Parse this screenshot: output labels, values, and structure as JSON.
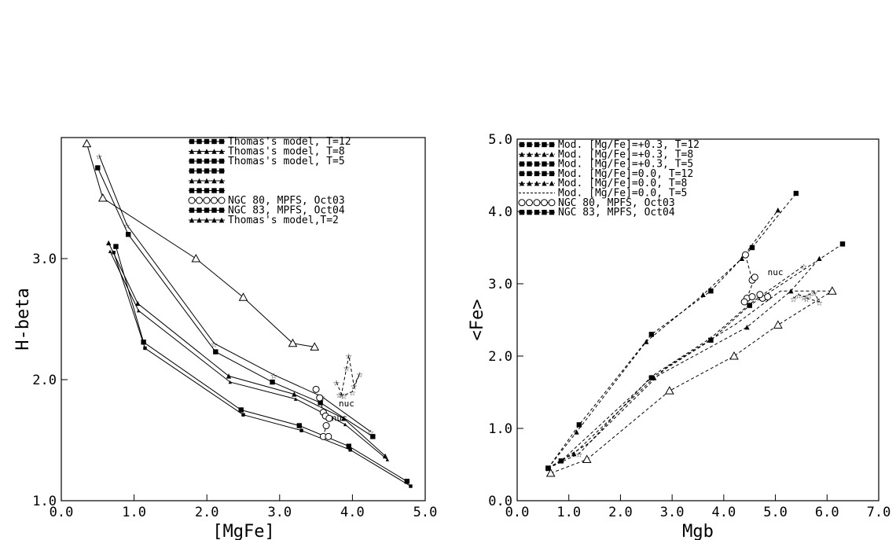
{
  "chart_data": [
    {
      "type": "line",
      "xlabel": "[MgFe]",
      "ylabel": "H-beta",
      "xlim": [
        0.0,
        5.0
      ],
      "ylim": [
        1.0,
        4.0
      ],
      "xticks": [
        "0.0",
        "1.0",
        "2.0",
        "3.0",
        "4.0",
        "5.0"
      ],
      "yticks": [
        "1.0",
        "2.0",
        "3.0"
      ],
      "legend": [
        {
          "label": "Thomas's model, T=12",
          "marker": "square"
        },
        {
          "label": "Thomas's model, T=8",
          "marker": "triangle"
        },
        {
          "label": "Thomas's model, T=5",
          "marker": "star"
        },
        {
          "label": "",
          "marker": "square"
        },
        {
          "label": "",
          "marker": "triangle"
        },
        {
          "label": "",
          "marker": "star"
        },
        {
          "label": "NGC 80, MPFS, Oct03",
          "marker": "circle"
        },
        {
          "label": "NGC 83, MPFS, Oct04",
          "marker": "star"
        },
        {
          "label": "Thomas's model,T=2",
          "marker": "triangle"
        }
      ],
      "series": [
        {
          "marker": "triangle-open",
          "x": [
            0.35,
            0.57,
            1.85,
            2.5,
            3.18,
            3.48
          ],
          "y": [
            3.95,
            3.5,
            3.0,
            2.68,
            2.3,
            2.27
          ]
        },
        {
          "marker": "star",
          "x": [
            0.52,
            0.9,
            2.1,
            2.92,
            3.58,
            4.25
          ],
          "y": [
            3.85,
            3.28,
            2.3,
            2.04,
            1.86,
            1.57
          ]
        },
        {
          "marker": "square",
          "x": [
            0.5,
            0.92,
            2.12,
            2.9,
            3.56,
            4.28
          ],
          "y": [
            3.75,
            3.2,
            2.23,
            1.98,
            1.81,
            1.53
          ]
        },
        {
          "marker": "triangle",
          "x": [
            0.65,
            1.05,
            2.3,
            3.2,
            3.88,
            4.45
          ],
          "y": [
            3.13,
            2.63,
            2.03,
            1.88,
            1.68,
            1.37
          ]
        },
        {
          "marker": "small-triangle",
          "x": [
            0.67,
            1.06,
            2.32,
            3.22,
            3.9,
            4.48
          ],
          "y": [
            3.06,
            2.57,
            1.98,
            1.84,
            1.63,
            1.34
          ]
        },
        {
          "marker": "square",
          "x": [
            0.75,
            1.13,
            2.47,
            3.27,
            3.95,
            4.75
          ],
          "y": [
            3.1,
            2.31,
            1.75,
            1.62,
            1.45,
            1.16
          ]
        },
        {
          "marker": "small-square",
          "x": [
            0.72,
            1.15,
            2.5,
            3.3,
            3.97,
            4.8
          ],
          "y": [
            3.05,
            2.26,
            1.71,
            1.58,
            1.42,
            1.12
          ]
        },
        {
          "marker": "circle",
          "dashed": true,
          "x": [
            3.5,
            3.55,
            3.6,
            3.63,
            3.68,
            3.64,
            3.6,
            3.67
          ],
          "y": [
            1.92,
            1.85,
            1.73,
            1.7,
            1.68,
            1.62,
            1.53,
            1.53
          ]
        },
        {
          "marker": "star",
          "dashed": true,
          "x": [
            3.78,
            3.85,
            3.92,
            3.95,
            4.02,
            4.1,
            4.0,
            3.88,
            3.82
          ],
          "y": [
            1.98,
            1.88,
            2.1,
            2.2,
            1.95,
            2.05,
            1.9,
            1.87,
            1.88
          ]
        }
      ],
      "annotations": [
        {
          "text": "nuc",
          "x": 3.92,
          "y": 1.78
        },
        {
          "text": "nuc",
          "x": 3.82,
          "y": 1.66
        }
      ]
    },
    {
      "type": "line",
      "xlabel": "Mgb",
      "ylabel": "<Fe>",
      "xlim": [
        0.0,
        7.0
      ],
      "ylim": [
        0.0,
        5.0
      ],
      "xticks": [
        "0.0",
        "1.0",
        "2.0",
        "3.0",
        "4.0",
        "5.0",
        "6.0",
        "7.0"
      ],
      "yticks": [
        "0.0",
        "1.0",
        "2.0",
        "3.0",
        "4.0",
        "5.0"
      ],
      "legend": [
        {
          "label": "Mod. [Mg/Fe]=+0.3, T=12",
          "marker": "square"
        },
        {
          "label": "Mod. [Mg/Fe]=+0.3, T=8",
          "marker": "triangle"
        },
        {
          "label": "Mod. [Mg/Fe]=+0.3, T=5",
          "marker": "star"
        },
        {
          "label": "Mod. [Mg/Fe]=0.0, T=12",
          "marker": "square"
        },
        {
          "label": "Mod. [Mg/Fe]=0.0, T=8",
          "marker": "triangle"
        },
        {
          "label": "Mod. [Mg/Fe]=0.0, T=5",
          "marker": "none"
        },
        {
          "label": "NGC 80, MPFS, Oct03",
          "marker": "circle"
        },
        {
          "label": "NGC 83, MPFS, Oct04",
          "marker": "star"
        }
      ],
      "series": [
        {
          "marker": "square",
          "dashed": true,
          "x": [
            0.6,
            1.2,
            2.6,
            3.75,
            4.55,
            5.4
          ],
          "y": [
            0.45,
            1.05,
            2.3,
            2.9,
            3.5,
            4.25
          ]
        },
        {
          "marker": "triangle",
          "dashed": true,
          "x": [
            0.6,
            1.15,
            2.5,
            3.6,
            4.35,
            5.05
          ],
          "y": [
            0.45,
            0.95,
            2.2,
            2.85,
            3.35,
            4.02
          ]
        },
        {
          "marker": "star",
          "dashed": true,
          "x": [
            0.6,
            1.2,
            2.6,
            3.75,
            4.5,
            5.55
          ],
          "y": [
            0.45,
            0.65,
            1.72,
            2.25,
            2.72,
            3.25
          ]
        },
        {
          "marker": "square",
          "dashed": true,
          "x": [
            0.6,
            0.85,
            2.6,
            3.75,
            4.5,
            6.3
          ],
          "y": [
            0.45,
            0.55,
            1.7,
            2.22,
            2.7,
            3.55
          ]
        },
        {
          "marker": "triangle",
          "dashed": true,
          "x": [
            0.6,
            1.1,
            2.65,
            4.45,
            5.3,
            5.85
          ],
          "y": [
            0.45,
            0.65,
            1.7,
            2.4,
            2.9,
            3.35
          ]
        },
        {
          "marker": "none",
          "dashed": true,
          "x": [
            0.6,
            1.4,
            2.9,
            4.25,
            5.1,
            6.05
          ],
          "y": [
            0.45,
            0.8,
            1.85,
            2.45,
            2.9,
            2.9
          ]
        },
        {
          "marker": "triangle-open",
          "dashed": true,
          "x": [
            0.65,
            1.35,
            2.95,
            4.2,
            5.05,
            6.1
          ],
          "y": [
            0.38,
            0.57,
            1.52,
            2.0,
            2.43,
            2.9
          ]
        },
        {
          "marker": "circle",
          "dashed": true,
          "x": [
            4.42,
            4.55,
            4.6,
            4.45,
            4.4,
            4.55,
            4.75,
            4.85,
            4.7
          ],
          "y": [
            3.4,
            3.05,
            3.09,
            2.8,
            2.75,
            2.82,
            2.8,
            2.82,
            2.85
          ]
        },
        {
          "marker": "star",
          "dashed": true,
          "x": [
            5.35,
            5.45,
            5.55,
            5.65,
            5.75,
            5.85,
            5.6
          ],
          "y": [
            2.8,
            2.85,
            2.82,
            2.85,
            2.88,
            2.75,
            2.8
          ]
        }
      ],
      "annotations": [
        {
          "text": "nuc",
          "x": 5.0,
          "y": 3.12
        }
      ]
    }
  ]
}
